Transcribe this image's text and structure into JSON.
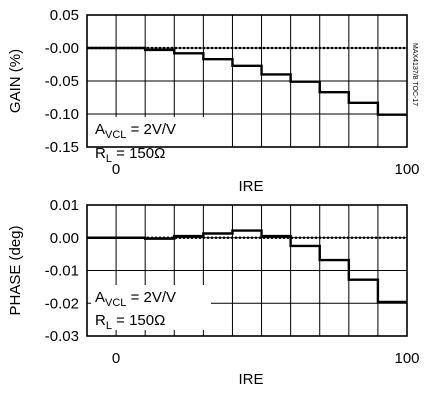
{
  "side_label": "MAX4137/8 TOC-17",
  "chart_data": [
    {
      "type": "line",
      "step": true,
      "xlabel": "IRE",
      "ylabel": "GAIN (%)",
      "xlim": [
        -10,
        100
      ],
      "ylim": [
        -0.15,
        0.05
      ],
      "x_ticks": [
        0,
        100
      ],
      "y_ticks": [
        "0.05",
        "-0.00",
        "-0.05",
        "-0.10",
        "-0.15"
      ],
      "y_tick_values": [
        0.05,
        0.0,
        -0.05,
        -0.1,
        -0.15
      ],
      "grid": true,
      "reference_line": 0,
      "annotation": {
        "line1_main": "A",
        "line1_sub": "VCL",
        "line1_rest": " = 2V/V",
        "line2_main": "R",
        "line2_sub": "L",
        "line2_rest": " = 150Ω"
      },
      "series": [
        {
          "x": [
            -10,
            0,
            10,
            20,
            30,
            40,
            50,
            60,
            70,
            80,
            90,
            100
          ],
          "values": [
            0.0,
            0.0,
            -0.003,
            -0.008,
            -0.017,
            -0.027,
            -0.04,
            -0.051,
            -0.067,
            -0.083,
            -0.101,
            -0.101
          ]
        }
      ]
    },
    {
      "type": "line",
      "step": true,
      "xlabel": "IRE",
      "ylabel": "PHASE (deg)",
      "xlim": [
        -10,
        100
      ],
      "ylim": [
        -0.03,
        0.01
      ],
      "x_ticks": [
        0,
        100
      ],
      "y_ticks": [
        "0.01",
        "0.00",
        "-0.01",
        "-0.02",
        "-0.03"
      ],
      "y_tick_values": [
        0.01,
        0.0,
        -0.01,
        -0.02,
        -0.03
      ],
      "grid": true,
      "reference_line": 0,
      "annotation": {
        "line1_main": "A",
        "line1_sub": "VCL",
        "line1_rest": " = 2V/V",
        "line2_main": "R",
        "line2_sub": "L",
        "line2_rest": " = 150Ω"
      },
      "series": [
        {
          "x": [
            -10,
            0,
            10,
            20,
            30,
            40,
            50,
            60,
            70,
            80,
            90,
            100
          ],
          "values": [
            0.0,
            0.0,
            -0.0003,
            0.0005,
            0.0013,
            0.0022,
            0.0005,
            -0.0025,
            -0.0068,
            -0.0128,
            -0.0196,
            -0.0196
          ]
        }
      ]
    }
  ]
}
